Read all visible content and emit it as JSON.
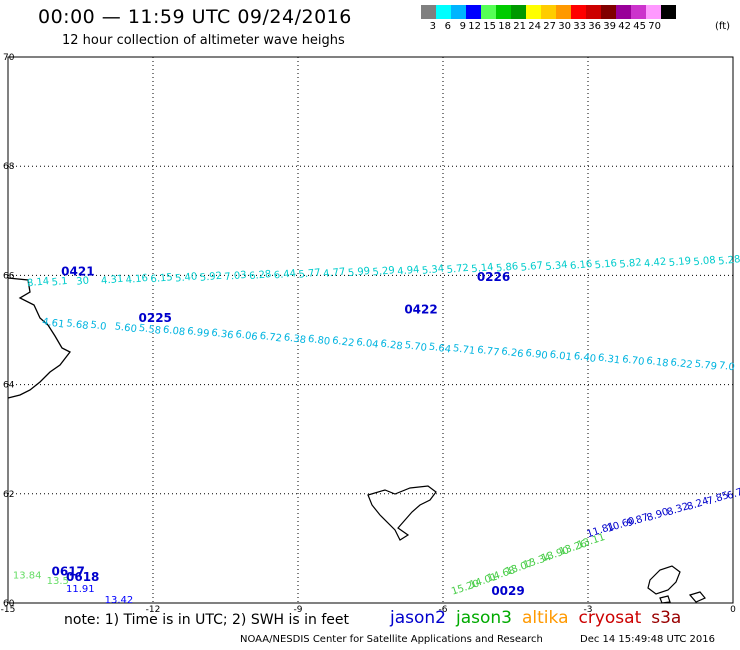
{
  "header": {
    "title": "00:00 — 11:59 UTC 09/24/2016",
    "subtitle": "12 hour collection of altimeter wave heighs"
  },
  "legend": {
    "colors": [
      "#808080",
      "#00ffff",
      "#00b4ff",
      "#0000ff",
      "#55ff55",
      "#00cc00",
      "#009900",
      "#ffff00",
      "#ffcc00",
      "#ff9900",
      "#ff0000",
      "#cc0000",
      "#800000",
      "#990099",
      "#cc33cc",
      "#ff99ff",
      "#000000"
    ],
    "labels": [
      "3",
      "6",
      "9",
      "12",
      "15",
      "18",
      "21",
      "24",
      "27",
      "30",
      "33",
      "36",
      "39",
      "42",
      "45",
      "70"
    ],
    "unit": "(ft)"
  },
  "map": {
    "lon_ticks": [
      "-15",
      "-12",
      "-9",
      "-6",
      "-3",
      "0"
    ],
    "lat_ticks": [
      "70",
      "68",
      "66",
      "64",
      "62",
      "60"
    ]
  },
  "passes": [
    {
      "label": "0421",
      "lon": -13.9,
      "lat": 66.0
    },
    {
      "label": "0226",
      "lon": -5.3,
      "lat": 65.9
    },
    {
      "label": "0225",
      "lon": -12.3,
      "lat": 65.15
    },
    {
      "label": "0422",
      "lon": -6.8,
      "lat": 65.3
    },
    {
      "label": "0617",
      "lon": -14.1,
      "lat": 60.5
    },
    {
      "label": "0618",
      "lon": -13.8,
      "lat": 60.4
    },
    {
      "label": "0029",
      "lon": -5.0,
      "lat": 60.15
    }
  ],
  "swh_values": {
    "pass_0421_0226": [
      "8.14",
      "5.1",
      "30",
      "4.31",
      "4.16",
      "6.15",
      "5.40",
      "5.92",
      "7.03",
      "6.28",
      "6.44",
      "5.77",
      "4.77",
      "5.99",
      "5.29",
      "4.94",
      "5.34",
      "5.72",
      "5.14",
      "5.86",
      "5.67",
      "5.34",
      "6.16",
      "5.16",
      "5.82",
      "4.42",
      "5.19",
      "5.08",
      "5.28"
    ],
    "pass_0225_0422": [
      "4.61",
      "5.68",
      "5.0",
      "5.60",
      "5.58",
      "6.08",
      "6.99",
      "6.36",
      "6.06",
      "6.72",
      "6.38",
      "6.80",
      "6.22",
      "6.04",
      "6.28",
      "5.70",
      "5.64",
      "5.71",
      "6.77",
      "6.26",
      "6.90",
      "6.01",
      "6.40",
      "6.31",
      "6.70",
      "6.18",
      "6.22",
      "5.79",
      "7.0"
    ],
    "pass_0617": [
      "13.84",
      "13.5"
    ],
    "pass_0618": [
      "11.91",
      "13.42"
    ],
    "pass_0029_green": [
      "15.20",
      "14.01",
      "14.68",
      "13.07",
      "13.34",
      "13.90",
      "13.26",
      "13.11"
    ],
    "pass_0029_blue": [
      "11.81",
      "10.60",
      "9.87",
      "8.90",
      "8.32",
      "8.24",
      "7.85",
      "6.78"
    ]
  },
  "footer": {
    "note": "note: 1) Time is in UTC; 2) SWH is in feet",
    "satellites": [
      {
        "name": "jason2",
        "color": "#0000cc"
      },
      {
        "name": "jason3",
        "color": "#00aa00"
      },
      {
        "name": "altika",
        "color": "#ff9900"
      },
      {
        "name": "cryosat",
        "color": "#cc0000"
      },
      {
        "name": "s3a",
        "color": "#990000"
      }
    ],
    "credit": "NOAA/NESDIS Center for Satellite Applications and Research",
    "timestamp": "Dec 14 15:49:48 UTC 2016"
  }
}
